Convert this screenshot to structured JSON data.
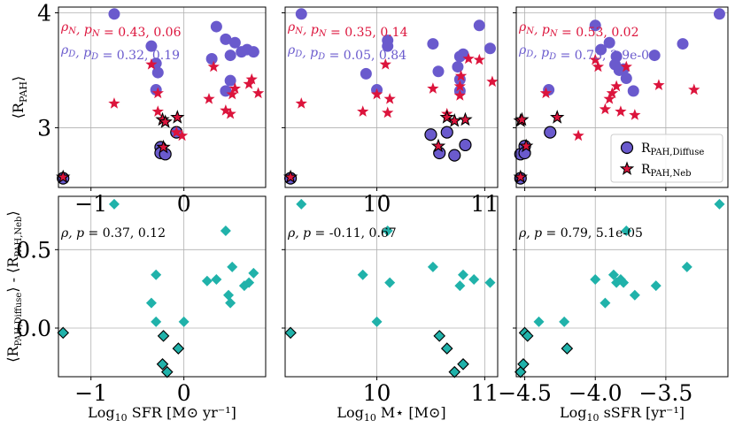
{
  "chart_data": [
    {
      "type": "scatter",
      "panel": "top-left",
      "ylabel": "⟨R_PAH⟩",
      "xlabel": "",
      "xlim": [
        -1.35,
        0.88
      ],
      "ylim": [
        2.48,
        4.05
      ],
      "xticks": [
        -1,
        0
      ],
      "xticklabels": [
        "−1",
        "0"
      ],
      "yticks": [
        3,
        4
      ],
      "yticklabels": [
        "3",
        "4"
      ],
      "annotations": [
        {
          "text": "ρN, pN = 0.43, 0.06",
          "color": "#dc143c"
        },
        {
          "text": "ρD, pD = 0.32, 0.19",
          "color": "#6a5acd"
        }
      ],
      "series": [
        {
          "name": "R_PAH,Diffuse",
          "marker": "circle",
          "color": "#6a5acd",
          "points": [
            [
              -0.75,
              3.99
            ],
            [
              -0.35,
              3.71
            ],
            [
              -0.3,
              3.56
            ],
            [
              -0.28,
              3.48
            ],
            [
              -0.3,
              3.33
            ],
            [
              0.35,
              3.88
            ],
            [
              0.45,
              3.77
            ],
            [
              0.55,
              3.74
            ],
            [
              0.3,
              3.6
            ],
            [
              0.5,
              3.63
            ],
            [
              0.62,
              3.66
            ],
            [
              0.68,
              3.68
            ],
            [
              0.75,
              3.66
            ],
            [
              0.45,
              3.32
            ],
            [
              0.5,
              3.41
            ]
          ]
        },
        {
          "name": "R_PAH,Diffuse",
          "marker": "circle-edge",
          "color": "#6a5acd",
          "points": [
            [
              -1.3,
              2.56
            ],
            [
              -0.25,
              2.83
            ],
            [
              -0.25,
              2.78
            ],
            [
              -0.2,
              2.77
            ],
            [
              -0.08,
              2.96
            ]
          ]
        },
        {
          "name": "R_PAH,Neb",
          "marker": "star",
          "color": "#dc143c",
          "points": [
            [
              -0.75,
              3.21
            ],
            [
              -0.35,
              3.55
            ],
            [
              -0.28,
              3.3
            ],
            [
              -0.28,
              3.14
            ],
            [
              -0.08,
              2.96
            ],
            [
              -0.02,
              2.93
            ],
            [
              0.27,
              3.25
            ],
            [
              0.32,
              3.53
            ],
            [
              0.45,
              3.15
            ],
            [
              0.5,
              3.12
            ],
            [
              0.52,
              3.29
            ],
            [
              0.55,
              3.34
            ],
            [
              0.7,
              3.38
            ],
            [
              0.73,
              3.42
            ],
            [
              0.8,
              3.3
            ]
          ]
        },
        {
          "name": "R_PAH,Neb",
          "marker": "star-edge",
          "color": "#dc143c",
          "points": [
            [
              -1.3,
              2.57
            ],
            [
              -0.23,
              3.07
            ],
            [
              -0.2,
              3.05
            ],
            [
              -0.07,
              3.09
            ],
            [
              -0.22,
              2.83
            ]
          ]
        }
      ]
    },
    {
      "type": "scatter",
      "panel": "top-middle",
      "xlabel": "",
      "ylabel": "",
      "xlim": [
        9.15,
        11.12
      ],
      "ylim": [
        2.48,
        4.05
      ],
      "xticks": [
        10,
        11
      ],
      "xticklabels": [
        "10",
        "11"
      ],
      "yticks": [
        3,
        4
      ],
      "yticklabels": [
        "",
        ""
      ],
      "annotations": [
        {
          "text": "ρN, pN = 0.35, 0.14",
          "color": "#dc143c"
        },
        {
          "text": "ρD, pD = 0.05, 0.84",
          "color": "#6a5acd"
        }
      ],
      "series": [
        {
          "name": "R_PAH,Diffuse",
          "marker": "circle",
          "color": "#6a5acd",
          "points": [
            [
              9.3,
              3.99
            ],
            [
              9.9,
              3.47
            ],
            [
              10.0,
              3.33
            ],
            [
              10.1,
              3.76
            ],
            [
              10.1,
              3.71
            ],
            [
              10.52,
              3.73
            ],
            [
              10.57,
              3.49
            ],
            [
              10.75,
              3.53
            ],
            [
              10.77,
              3.62
            ],
            [
              10.8,
              3.64
            ],
            [
              10.77,
              3.42
            ],
            [
              10.77,
              3.32
            ],
            [
              10.95,
              3.89
            ],
            [
              11.05,
              3.69
            ]
          ]
        },
        {
          "name": "R_PAH,Diffuse",
          "marker": "circle-edge",
          "color": "#6a5acd",
          "points": [
            [
              9.2,
              2.56
            ],
            [
              10.5,
              2.94
            ],
            [
              10.58,
              2.78
            ],
            [
              10.65,
              2.96
            ],
            [
              10.72,
              2.76
            ],
            [
              10.82,
              2.85
            ]
          ]
        },
        {
          "name": "R_PAH,Neb",
          "marker": "star",
          "color": "#dc143c",
          "points": [
            [
              9.3,
              3.21
            ],
            [
              9.87,
              3.14
            ],
            [
              10.0,
              3.29
            ],
            [
              10.08,
              3.55
            ],
            [
              10.1,
              3.13
            ],
            [
              10.12,
              3.25
            ],
            [
              10.52,
              3.34
            ],
            [
              10.65,
              3.12
            ],
            [
              10.77,
              3.28
            ],
            [
              10.77,
              3.36
            ],
            [
              10.78,
              3.45
            ],
            [
              10.85,
              3.6
            ],
            [
              10.95,
              3.59
            ],
            [
              11.07,
              3.4
            ]
          ]
        },
        {
          "name": "R_PAH,Neb",
          "marker": "star-edge",
          "color": "#dc143c",
          "points": [
            [
              9.2,
              2.57
            ],
            [
              10.57,
              2.84
            ],
            [
              10.65,
              3.09
            ],
            [
              10.72,
              3.06
            ],
            [
              10.82,
              3.07
            ]
          ]
        }
      ]
    },
    {
      "type": "scatter",
      "panel": "top-right",
      "xlabel": "",
      "ylabel": "",
      "xlim": [
        -4.56,
        -3.06
      ],
      "ylim": [
        2.48,
        4.05
      ],
      "xticks": [
        -4.5,
        -4.0,
        -3.5
      ],
      "xticklabels": [
        "",
        "",
        ""
      ],
      "yticks": [
        3,
        4
      ],
      "yticklabels": [
        "",
        ""
      ],
      "annotations": [
        {
          "text": "ρN, pN = 0.53, 0.02",
          "color": "#dc143c"
        },
        {
          "text": "ρD, pD = 0.73, 3.9e-04",
          "color": "#6a5acd"
        }
      ],
      "legend": [
        {
          "label": "R_PAH,Diffuse",
          "marker": "circle",
          "color": "#6a5acd"
        },
        {
          "label": "R_PAH,Neb",
          "marker": "star",
          "color": "#dc143c"
        }
      ],
      "series": [
        {
          "name": "R_PAH,Diffuse",
          "marker": "circle",
          "color": "#6a5acd",
          "points": [
            [
              -4.33,
              3.33
            ],
            [
              -4.0,
              3.89
            ],
            [
              -3.96,
              3.68
            ],
            [
              -3.9,
              3.74
            ],
            [
              -3.86,
              3.55
            ],
            [
              -3.83,
              3.5
            ],
            [
              -3.8,
              3.51
            ],
            [
              -3.85,
              3.62
            ],
            [
              -3.78,
              3.43
            ],
            [
              -3.73,
              3.32
            ],
            [
              -3.58,
              3.63
            ],
            [
              -3.38,
              3.73
            ],
            [
              -3.12,
              3.99
            ]
          ]
        },
        {
          "name": "R_PAH,Diffuse",
          "marker": "circle-edge",
          "color": "#6a5acd",
          "points": [
            [
              -4.53,
              2.56
            ],
            [
              -4.53,
              2.77
            ],
            [
              -4.5,
              2.84
            ],
            [
              -4.5,
              2.78
            ],
            [
              -4.32,
              2.96
            ]
          ]
        },
        {
          "name": "R_PAH,Neb",
          "marker": "star",
          "color": "#dc143c",
          "points": [
            [
              -4.35,
              3.3
            ],
            [
              -4.12,
              2.93
            ],
            [
              -4.0,
              3.59
            ],
            [
              -3.98,
              3.53
            ],
            [
              -3.93,
              3.16
            ],
            [
              -3.9,
              3.25
            ],
            [
              -3.88,
              3.3
            ],
            [
              -3.85,
              3.36
            ],
            [
              -3.82,
              3.14
            ],
            [
              -3.78,
              3.53
            ],
            [
              -3.72,
              3.11
            ],
            [
              -3.55,
              3.37
            ],
            [
              -3.3,
              3.33
            ]
          ]
        },
        {
          "name": "R_PAH,Neb",
          "marker": "star-edge",
          "color": "#dc143c",
          "points": [
            [
              -4.53,
              2.57
            ],
            [
              -4.53,
              3.06
            ],
            [
              -4.52,
              3.07
            ],
            [
              -4.49,
              2.84
            ],
            [
              -4.27,
              3.09
            ]
          ]
        }
      ]
    },
    {
      "type": "scatter",
      "panel": "bottom-left",
      "xlabel": "Log10 SFR [M⊙ yr⁻¹]",
      "ylabel": "⟨R_PAH,Diffuse⟩ - ⟨R_PAH,Neb⟩",
      "xlim": [
        -1.35,
        0.88
      ],
      "ylim": [
        -0.31,
        0.84
      ],
      "xticks": [
        -1,
        0
      ],
      "xticklabels": [
        "−1",
        "0"
      ],
      "yticks": [
        0,
        0.5
      ],
      "yticklabels": [
        "0.0",
        "0.5"
      ],
      "annotations": [
        {
          "text": "ρ, p = 0.37, 0.12",
          "color": "#000000"
        }
      ],
      "series": [
        {
          "name": "Difference",
          "marker": "diamond",
          "color": "#20b2aa",
          "points": [
            [
              -0.75,
              0.79
            ],
            [
              -0.3,
              0.34
            ],
            [
              -0.35,
              0.16
            ],
            [
              -0.3,
              0.04
            ],
            [
              0.0,
              0.04
            ],
            [
              0.25,
              0.3
            ],
            [
              0.35,
              0.31
            ],
            [
              0.45,
              0.62
            ],
            [
              0.52,
              0.39
            ],
            [
              0.48,
              0.21
            ],
            [
              0.5,
              0.16
            ],
            [
              0.65,
              0.27
            ],
            [
              0.7,
              0.29
            ],
            [
              0.75,
              0.35
            ]
          ]
        },
        {
          "name": "Difference",
          "marker": "diamond-edge",
          "color": "#20b2aa",
          "points": [
            [
              -1.3,
              -0.03
            ],
            [
              -0.22,
              -0.05
            ],
            [
              -0.06,
              -0.13
            ],
            [
              -0.23,
              -0.23
            ],
            [
              -0.18,
              -0.28
            ]
          ]
        }
      ]
    },
    {
      "type": "scatter",
      "panel": "bottom-middle",
      "xlabel": "Log10 M⋆ [M⊙]",
      "ylabel": "",
      "xlim": [
        9.15,
        11.12
      ],
      "ylim": [
        -0.31,
        0.84
      ],
      "xticks": [
        10,
        11
      ],
      "xticklabels": [
        "10",
        "11"
      ],
      "yticks": [
        0,
        0.5
      ],
      "yticklabels": [
        "",
        ""
      ],
      "annotations": [
        {
          "text": "ρ, p = -0.11, 0.67",
          "color": "#000000"
        }
      ],
      "series": [
        {
          "name": "Difference",
          "marker": "diamond",
          "color": "#20b2aa",
          "points": [
            [
              9.3,
              0.79
            ],
            [
              9.87,
              0.34
            ],
            [
              10.0,
              0.04
            ],
            [
              10.1,
              0.62
            ],
            [
              10.12,
              0.29
            ],
            [
              10.52,
              0.39
            ],
            [
              10.77,
              0.27
            ],
            [
              10.8,
              0.34
            ],
            [
              10.9,
              0.31
            ],
            [
              11.05,
              0.29
            ]
          ]
        },
        {
          "name": "Difference",
          "marker": "diamond-edge",
          "color": "#20b2aa",
          "points": [
            [
              9.2,
              -0.03
            ],
            [
              10.58,
              -0.05
            ],
            [
              10.65,
              -0.13
            ],
            [
              10.72,
              -0.28
            ],
            [
              10.8,
              -0.23
            ]
          ]
        }
      ]
    },
    {
      "type": "scatter",
      "panel": "bottom-right",
      "xlabel": "Log10 sSFR [yr⁻¹]",
      "ylabel": "",
      "xlim": [
        -4.56,
        -3.06
      ],
      "ylim": [
        -0.31,
        0.84
      ],
      "xticks": [
        -4.5,
        -4.0,
        -3.5
      ],
      "xticklabels": [
        "−4.5",
        "−4.0",
        "−3.5"
      ],
      "yticks": [
        0,
        0.5
      ],
      "yticklabels": [
        "",
        ""
      ],
      "annotations": [
        {
          "text": "ρ, p = 0.79, 5.1e-05",
          "color": "#000000"
        }
      ],
      "series": [
        {
          "name": "Difference",
          "marker": "diamond",
          "color": "#20b2aa",
          "points": [
            [
              -4.4,
              0.04
            ],
            [
              -4.22,
              0.04
            ],
            [
              -4.0,
              0.31
            ],
            [
              -3.93,
              0.16
            ],
            [
              -3.87,
              0.34
            ],
            [
              -3.85,
              0.29
            ],
            [
              -3.82,
              0.31
            ],
            [
              -3.8,
              0.29
            ],
            [
              -3.78,
              0.62
            ],
            [
              -3.72,
              0.21
            ],
            [
              -3.57,
              0.27
            ],
            [
              -3.35,
              0.39
            ],
            [
              -3.12,
              0.79
            ]
          ]
        },
        {
          "name": "Difference",
          "marker": "diamond-edge",
          "color": "#20b2aa",
          "points": [
            [
              -4.53,
              -0.28
            ],
            [
              -4.51,
              -0.23
            ],
            [
              -4.5,
              -0.03
            ],
            [
              -4.48,
              -0.05
            ],
            [
              -4.2,
              -0.13
            ]
          ]
        }
      ]
    }
  ]
}
